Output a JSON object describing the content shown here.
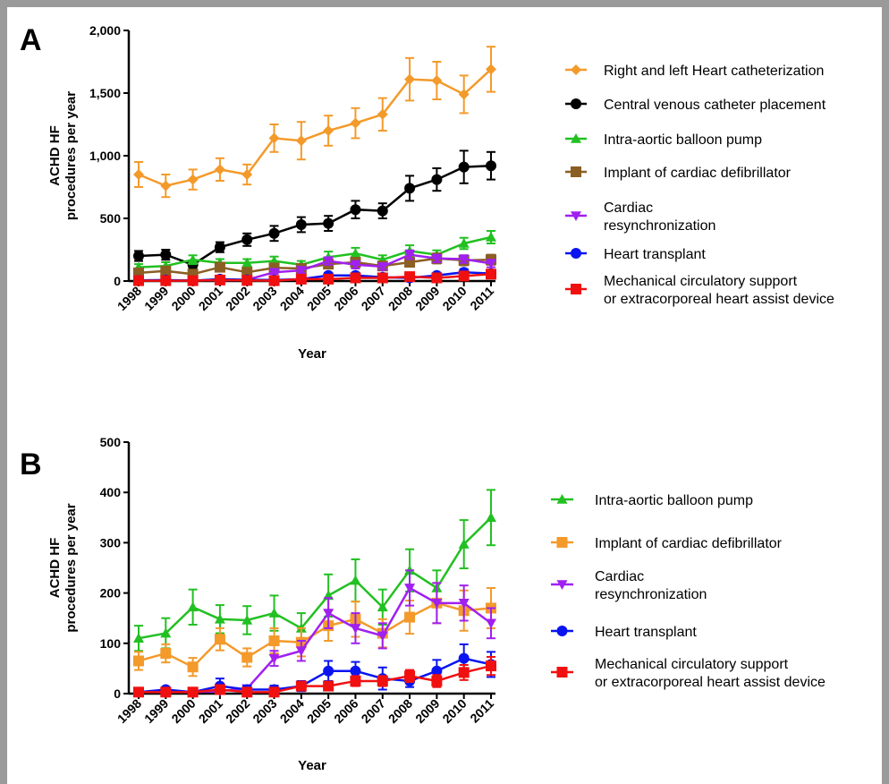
{
  "chart_data": [
    {
      "panel": "A",
      "type": "line",
      "xlabel": "Year",
      "ylabel": [
        "ACHD HF",
        "procedures per year"
      ],
      "ylim": [
        0,
        2000
      ],
      "yticks": [
        0,
        500,
        1000,
        1500,
        2000
      ],
      "ytick_labels": [
        "0",
        "500",
        "1,000",
        "1,500",
        "2,000"
      ],
      "categories": [
        "1998",
        "1999",
        "2000",
        "2001",
        "2002",
        "2003",
        "2004",
        "2005",
        "2006",
        "2007",
        "2008",
        "2009",
        "2010",
        "2011"
      ],
      "legend_position": "right",
      "series": [
        {
          "name": "Right and left Heart catheterization",
          "color": "#f39a2b",
          "marker": "diamond",
          "values": [
            850,
            760,
            810,
            890,
            850,
            1140,
            1120,
            1200,
            1260,
            1330,
            1610,
            1600,
            1490,
            1690
          ],
          "errors": [
            100,
            90,
            80,
            90,
            80,
            110,
            150,
            120,
            120,
            130,
            170,
            150,
            150,
            180
          ]
        },
        {
          "name": "Central venous catheter placement",
          "color": "#000000",
          "marker": "circle",
          "values": [
            200,
            210,
            130,
            270,
            330,
            380,
            450,
            460,
            570,
            560,
            740,
            810,
            910,
            920
          ],
          "errors": [
            40,
            40,
            30,
            40,
            50,
            60,
            60,
            60,
            70,
            60,
            100,
            90,
            130,
            110
          ]
        },
        {
          "name": "Intra-aortic balloon pump",
          "color": "#22c022",
          "marker": "triangle",
          "values": [
            110,
            120,
            170,
            145,
            145,
            160,
            130,
            190,
            220,
            170,
            240,
            210,
            300,
            350
          ],
          "errors": [
            25,
            30,
            35,
            30,
            30,
            35,
            30,
            45,
            45,
            35,
            45,
            35,
            45,
            50
          ]
        },
        {
          "name": "Implant of cardiac defibrillator",
          "color": "#8b5e23",
          "marker": "square",
          "values": [
            65,
            80,
            55,
            110,
            70,
            105,
            100,
            135,
            150,
            120,
            150,
            180,
            165,
            170
          ],
          "errors": [
            20,
            20,
            20,
            25,
            20,
            25,
            30,
            35,
            35,
            30,
            35,
            40,
            40,
            40
          ]
        },
        {
          "name": "Cardiac resynchronization",
          "label_lines": [
            "Cardiac",
            "resynchronization"
          ],
          "color": "#a020f0",
          "marker": "triangle-down",
          "values": [
            5,
            5,
            5,
            5,
            10,
            70,
            85,
            160,
            130,
            115,
            210,
            180,
            175,
            140
          ],
          "errors": [
            5,
            5,
            5,
            5,
            5,
            15,
            20,
            30,
            30,
            25,
            35,
            30,
            30,
            30
          ]
        },
        {
          "name": "Heart transplant",
          "color": "#0a14f0",
          "marker": "circle",
          "values": [
            5,
            8,
            3,
            15,
            10,
            8,
            15,
            45,
            45,
            30,
            25,
            45,
            70,
            60
          ],
          "errors": [
            5,
            5,
            5,
            15,
            8,
            8,
            10,
            20,
            20,
            20,
            15,
            20,
            25,
            25
          ]
        },
        {
          "name": "Mechanical circulatory support or extracorporeal heart assist device",
          "label_lines": [
            "Mechanical circulatory support",
            "or extracorporeal heart assist device"
          ],
          "color": "#f01010",
          "marker": "square",
          "values": [
            3,
            3,
            3,
            8,
            5,
            3,
            15,
            15,
            25,
            25,
            35,
            25,
            40,
            55
          ],
          "errors": [
            3,
            3,
            3,
            5,
            5,
            3,
            10,
            10,
            10,
            10,
            15,
            15,
            20,
            20
          ]
        }
      ]
    },
    {
      "panel": "B",
      "type": "line",
      "xlabel": "Year",
      "ylabel": [
        "ACHD HF",
        "procedures per year"
      ],
      "ylim": [
        0,
        500
      ],
      "yticks": [
        0,
        100,
        200,
        300,
        400,
        500
      ],
      "ytick_labels": [
        "0",
        "100",
        "200",
        "300",
        "400",
        "500"
      ],
      "categories": [
        "1998",
        "1999",
        "2000",
        "2001",
        "2002",
        "2003",
        "2004",
        "2005",
        "2006",
        "2007",
        "2008",
        "2009",
        "2010",
        "2011"
      ],
      "legend_position": "right",
      "series": [
        {
          "name": "Intra-aortic balloon pump",
          "color": "#22c022",
          "marker": "triangle",
          "values": [
            110,
            120,
            172,
            148,
            146,
            160,
            130,
            195,
            225,
            172,
            245,
            210,
            297,
            350
          ],
          "errors": [
            25,
            30,
            35,
            28,
            28,
            35,
            30,
            42,
            42,
            35,
            42,
            35,
            48,
            55
          ]
        },
        {
          "name": "Implant of cardiac defibrillator",
          "color": "#f39a2b",
          "marker": "square",
          "values": [
            65,
            80,
            53,
            108,
            72,
            105,
            102,
            135,
            148,
            120,
            152,
            180,
            165,
            170
          ],
          "errors": [
            18,
            18,
            18,
            22,
            18,
            25,
            28,
            30,
            35,
            28,
            33,
            40,
            40,
            40
          ]
        },
        {
          "name": "Cardiac resynchronization",
          "label_lines": [
            "Cardiac",
            "resynchronization"
          ],
          "color": "#a020f0",
          "marker": "triangle-down",
          "values": [
            3,
            5,
            3,
            5,
            10,
            70,
            85,
            160,
            130,
            115,
            210,
            180,
            180,
            140
          ],
          "errors": [
            3,
            3,
            3,
            3,
            5,
            15,
            20,
            30,
            30,
            25,
            35,
            40,
            35,
            30
          ]
        },
        {
          "name": "Heart transplant",
          "color": "#0a14f0",
          "marker": "circle",
          "values": [
            3,
            8,
            3,
            15,
            8,
            8,
            15,
            45,
            45,
            30,
            25,
            45,
            70,
            58
          ],
          "errors": [
            3,
            5,
            3,
            15,
            8,
            8,
            10,
            20,
            18,
            22,
            12,
            22,
            28,
            25
          ]
        },
        {
          "name": "Mechanical circulatory support or extracorporeal heart assist device",
          "label_lines": [
            "Mechanical circulatory support",
            "or extracorporeal heart assist device"
          ],
          "color": "#f01010",
          "marker": "square",
          "values": [
            3,
            3,
            3,
            8,
            3,
            3,
            15,
            15,
            25,
            25,
            35,
            25,
            42,
            55
          ],
          "errors": [
            3,
            3,
            3,
            5,
            3,
            3,
            8,
            8,
            10,
            10,
            12,
            12,
            15,
            18
          ]
        }
      ]
    }
  ]
}
